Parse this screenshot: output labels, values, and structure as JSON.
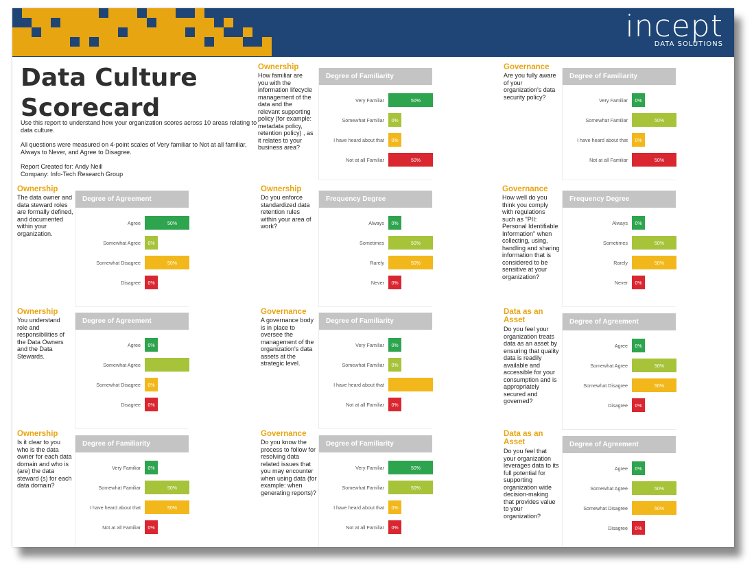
{
  "colors": {
    "banner": "#1e4575",
    "banner_pattern": "#e8a512",
    "green": "#2ea44f",
    "lightgreen": "#a6c33a",
    "yellow": "#f2b81b",
    "red": "#d92630",
    "category": "#e8a512",
    "header": "#c4c4c4"
  },
  "brand": {
    "logo_main": "incept",
    "logo_sub": "DATA SOLUTIONS"
  },
  "title": {
    "line1": "Data Culture",
    "line2": "Scorecard"
  },
  "intro": {
    "p1": "Use this report to understand how your organization scores across 10 areas relating to data culture.",
    "p2": "All questions were measured on 4-point scales of Very familiar to Not at all familiar, Always to Never, and Agree to Disagree.",
    "created_for": "Report Created for: Andy Neill",
    "company": "Company: Info-Tech Research Group"
  },
  "questions": [
    {
      "category": "Ownership",
      "text": "How familiar are you with the information lifecycle management of the data and the relevant supporting policy (for example: metadata policy, retention policy) , as it relates to your business area?"
    },
    {
      "category": "Governance",
      "text": "Are you fully aware of your organization's data security policy?"
    },
    {
      "category": "Ownership",
      "text": "The data owner and data steward roles are formally defined, and documented within your organization."
    },
    {
      "category": "Ownership",
      "text": "Do you enforce standardized data retention rules within your area of work?"
    },
    {
      "category": "Governance",
      "text": "How well do you think you comply with regulations such as \"PII: Personal Identifiable Information\" when collecting, using, handling and sharing information that is considered to be sensitive at your organization?"
    },
    {
      "category": "Ownership",
      "text": "You understand role and responsibilities of the Data Owners and the Data Stewards."
    },
    {
      "category": "Governance",
      "text": "A governance body is in place to oversee the management of the organization's data assets at the strategic level."
    },
    {
      "category": "Data as an Asset",
      "text": "Do you feel your organization treats data as an asset by ensuring that quality data is readily available and accessible for your consumption and is appropriately secured and governed?"
    },
    {
      "category": "Ownership",
      "text": "Is it clear to you who is the data owner for each data domain and who is (are) the data steward (s) for each data domain?"
    },
    {
      "category": "Governance",
      "text": "Do you know the process to follow for resolving data related issues that you may encounter when using data (for example: when generating reports)?"
    },
    {
      "category": "Data as an Asset",
      "text": "Do you feel that your organization leverages data to its full potential for supporting organization wide decision-making that provides value to your organization?"
    }
  ],
  "chart_data": [
    {
      "type": "bar",
      "orientation": "horizontal",
      "title": "Degree of Familiarity",
      "categories": [
        "Very Familiar",
        "Somewhat Familiar",
        "I have heard about that",
        "Not at all Familiar"
      ],
      "values": [
        50,
        0,
        0,
        50
      ],
      "labels": [
        "50%",
        "0%",
        "0%",
        "50%"
      ],
      "xlim": [
        0,
        100
      ]
    },
    {
      "type": "bar",
      "orientation": "horizontal",
      "title": "Degree of Familiarity",
      "categories": [
        "Very Familiar",
        "Somewhat Familiar",
        "I have heard about that",
        "Not at all Familiar"
      ],
      "values": [
        0,
        50,
        0,
        50
      ],
      "labels": [
        "0%",
        "50%",
        "0%",
        "50%"
      ],
      "xlim": [
        0,
        100
      ]
    },
    {
      "type": "bar",
      "orientation": "horizontal",
      "title": "Degree of Agreement",
      "categories": [
        "Agree",
        "Somewhat Agree",
        "Somewhat Disagree",
        "Disagree"
      ],
      "values": [
        50,
        0,
        50,
        0
      ],
      "labels": [
        "50%",
        "0%",
        "50%",
        "0%"
      ],
      "xlim": [
        0,
        100
      ]
    },
    {
      "type": "bar",
      "orientation": "horizontal",
      "title": "Frequency Degree",
      "categories": [
        "Always",
        "Sometimes",
        "Rarely",
        "Never"
      ],
      "values": [
        0,
        50,
        50,
        0
      ],
      "labels": [
        "0%",
        "50%",
        "50%",
        "0%"
      ],
      "xlim": [
        0,
        100
      ]
    },
    {
      "type": "bar",
      "orientation": "horizontal",
      "title": "Frequency Degree",
      "categories": [
        "Always",
        "Sometimes",
        "Rarely",
        "Never"
      ],
      "values": [
        0,
        50,
        50,
        0
      ],
      "labels": [
        "0%",
        "50%",
        "50%",
        "0%"
      ],
      "xlim": [
        0,
        100
      ]
    },
    {
      "type": "bar",
      "orientation": "horizontal",
      "title": "Degree of Agreement",
      "categories": [
        "Agree",
        "Somewhat Agree",
        "Somewhat Disagree",
        "Disagree"
      ],
      "values": [
        0,
        100,
        0,
        0
      ],
      "labels": [
        "0%",
        "100%",
        "0%",
        "0%"
      ],
      "xlim": [
        0,
        100
      ]
    },
    {
      "type": "bar",
      "orientation": "horizontal",
      "title": "Degree of Familiarity",
      "categories": [
        "Very Familiar",
        "Somewhat Familiar",
        "I have heard about that",
        "Not at all Familiar"
      ],
      "values": [
        0,
        0,
        100,
        0
      ],
      "labels": [
        "0%",
        "0%",
        "100%",
        "0%"
      ],
      "xlim": [
        0,
        100
      ]
    },
    {
      "type": "bar",
      "orientation": "horizontal",
      "title": "Degree of Agreement",
      "categories": [
        "Agree",
        "Somewhat Agree",
        "Somewhat Disagree",
        "Disagree"
      ],
      "values": [
        0,
        50,
        50,
        0
      ],
      "labels": [
        "0%",
        "50%",
        "50%",
        "0%"
      ],
      "xlim": [
        0,
        100
      ]
    },
    {
      "type": "bar",
      "orientation": "horizontal",
      "title": "Degree of Familiarity",
      "categories": [
        "Very Familiar",
        "Somewhat Familiar",
        "I have heard about that",
        "Not at all Familiar"
      ],
      "values": [
        0,
        50,
        50,
        0
      ],
      "labels": [
        "0%",
        "50%",
        "50%",
        "0%"
      ],
      "xlim": [
        0,
        100
      ]
    },
    {
      "type": "bar",
      "orientation": "horizontal",
      "title": "Degree of Familiarity",
      "categories": [
        "Very Familiar",
        "Somewhat Familiar",
        "I have heard about that",
        "Not at all Familiar"
      ],
      "values": [
        50,
        50,
        0,
        0
      ],
      "labels": [
        "50%",
        "50%",
        "0%",
        "0%"
      ],
      "xlim": [
        0,
        100
      ]
    },
    {
      "type": "bar",
      "orientation": "horizontal",
      "title": "Degree of Agreement",
      "categories": [
        "Agree",
        "Somewhat Agree",
        "Somewhat Disagree",
        "Disagree"
      ],
      "values": [
        0,
        50,
        50,
        0
      ],
      "labels": [
        "0%",
        "50%",
        "50%",
        "0%"
      ],
      "xlim": [
        0,
        100
      ]
    }
  ]
}
